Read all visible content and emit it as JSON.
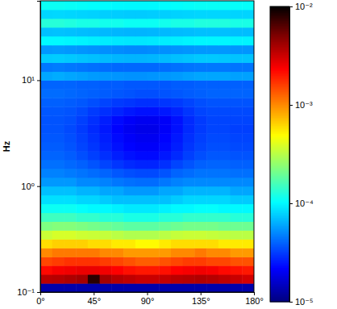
{
  "chart_data": {
    "type": "heatmap",
    "y_label": "Hz",
    "log": "y",
    "xlim": [
      0,
      180
    ],
    "ylim": [
      0.1,
      56.2
    ],
    "xticks": [
      {
        "value": 0,
        "label": "0°"
      },
      {
        "value": 45,
        "label": "45°"
      },
      {
        "value": 90,
        "label": "90°"
      },
      {
        "value": 135,
        "label": "135°"
      },
      {
        "value": 180,
        "label": "180°"
      }
    ],
    "yticks": [
      {
        "value": 0.1,
        "label": "10⁻¹"
      },
      {
        "value": 1,
        "label": "10⁰"
      },
      {
        "value": 10,
        "label": "10¹"
      }
    ],
    "colorbar_range": [
      1e-05,
      0.01
    ],
    "colorbar_ticks": [
      {
        "value": 1e-05,
        "label": "10⁻⁵"
      },
      {
        "value": 0.0001,
        "label": "10⁻⁴"
      },
      {
        "value": 0.001,
        "label": "10⁻³"
      },
      {
        "value": 0.01,
        "label": "10⁻²"
      }
    ],
    "x": [
      0,
      10,
      20,
      30,
      40,
      50,
      60,
      70,
      80,
      90,
      100,
      110,
      120,
      130,
      140,
      150,
      160,
      170,
      180
    ],
    "y": [
      0.1,
      0.121,
      0.147,
      0.178,
      0.215,
      0.261,
      0.316,
      0.383,
      0.464,
      0.562,
      0.681,
      0.825,
      1,
      1.21,
      1.47,
      1.78,
      2.15,
      2.61,
      3.16,
      3.83,
      4.64,
      5.62,
      6.81,
      8.25,
      10,
      12.1,
      14.7,
      17.8,
      21.5,
      26.1,
      31.6,
      38.3,
      46.4,
      56.2
    ],
    "z": [
      [
        1.3e-05,
        1.3e-05,
        1.3e-05,
        1.3e-05,
        1.3e-05,
        1.3e-05,
        1.3e-05,
        1.3e-05,
        1.3e-05,
        1.3e-05,
        1.3e-05,
        1.3e-05,
        1.3e-05,
        1.3e-05,
        1.3e-05,
        1.3e-05,
        1.3e-05,
        1.3e-05
      ],
      [
        0.0035,
        0.0036,
        0.0038,
        0.004,
        0.008,
        0.004,
        0.0036,
        0.0034,
        0.0032,
        0.0032,
        0.0033,
        0.0035,
        0.0036,
        0.0037,
        0.0036,
        0.0034,
        0.0032,
        0.003
      ],
      [
        0.0022,
        0.0024,
        0.0025,
        0.0026,
        0.0026,
        0.0025,
        0.0023,
        0.0021,
        0.002,
        0.002,
        0.0021,
        0.0023,
        0.0024,
        0.0025,
        0.0024,
        0.0022,
        0.0021,
        0.002
      ],
      [
        0.0015,
        0.0016,
        0.0017,
        0.0017,
        0.0017,
        0.0016,
        0.0015,
        0.0014,
        0.0013,
        0.0013,
        0.0014,
        0.0015,
        0.0016,
        0.0016,
        0.0015,
        0.0015,
        0.0014,
        0.0014
      ],
      [
        0.001,
        0.0011,
        0.0011,
        0.0011,
        0.0011,
        0.001,
        0.001,
        0.0009,
        0.0009,
        0.0009,
        0.0009,
        0.001,
        0.001,
        0.0011,
        0.001,
        0.001,
        0.0009,
        0.0009
      ],
      [
        0.0006,
        0.00065,
        0.00065,
        0.00065,
        0.0006,
        0.0006,
        0.00055,
        0.00055,
        0.0005,
        0.0005,
        0.00055,
        0.0006,
        0.0006,
        0.0006,
        0.0006,
        0.00055,
        0.00055,
        0.00055
      ],
      [
        0.00035,
        0.00038,
        0.00038,
        0.00036,
        0.00035,
        0.00034,
        0.00032,
        0.0003,
        0.0003,
        0.0003,
        0.00032,
        0.00034,
        0.00035,
        0.00035,
        0.00034,
        0.00033,
        0.00032,
        0.00032
      ],
      [
        0.00022,
        0.00023,
        0.00023,
        0.00022,
        0.00021,
        0.0002,
        0.00019,
        0.00018,
        0.00018,
        0.00018,
        0.00019,
        0.0002,
        0.00021,
        0.00021,
        0.00021,
        0.0002,
        0.0002,
        0.0002
      ],
      [
        0.00015,
        0.00015,
        0.00015,
        0.00014,
        0.00014,
        0.00013,
        0.00013,
        0.00012,
        0.00012,
        0.00012,
        0.00013,
        0.00013,
        0.00014,
        0.00014,
        0.00014,
        0.00014,
        0.00013,
        0.00013
      ],
      [
        0.00011,
        0.00011,
        0.00011,
        0.000105,
        0.0001,
        0.0001,
        9.5e-05,
        9e-05,
        9e-05,
        9e-05,
        9.5e-05,
        0.0001,
        0.0001,
        0.000105,
        0.000105,
        0.0001,
        0.0001,
        0.0001
      ],
      [
        8.5e-05,
        8.5e-05,
        8.5e-05,
        8e-05,
        8e-05,
        7.5e-05,
        7e-05,
        7e-05,
        7e-05,
        7e-05,
        7e-05,
        7.5e-05,
        8e-05,
        8e-05,
        8e-05,
        8e-05,
        7.5e-05,
        7.5e-05
      ],
      [
        7e-05,
        7e-05,
        7e-05,
        6.5e-05,
        6.5e-05,
        6e-05,
        6e-05,
        5.5e-05,
        5.5e-05,
        5.5e-05,
        6e-05,
        6e-05,
        6.5e-05,
        6.5e-05,
        6.5e-05,
        6.5e-05,
        6e-05,
        6e-05
      ],
      [
        5.5e-05,
        5.5e-05,
        5.5e-05,
        5e-05,
        5e-05,
        4.8e-05,
        4.5e-05,
        4.3e-05,
        4.2e-05,
        4.2e-05,
        4.5e-05,
        4.8e-05,
        5e-05,
        5e-05,
        5e-05,
        5e-05,
        5e-05,
        5e-05
      ],
      [
        4.8e-05,
        4.8e-05,
        4.6e-05,
        4.4e-05,
        4.2e-05,
        4e-05,
        3.7e-05,
        3.5e-05,
        3.4e-05,
        3.4e-05,
        3.6e-05,
        4e-05,
        4.2e-05,
        4.4e-05,
        4.4e-05,
        4.4e-05,
        4.3e-05,
        4.3e-05
      ],
      [
        4.3e-05,
        4.3e-05,
        4.1e-05,
        3.9e-05,
        3.6e-05,
        3.3e-05,
        3e-05,
        2.8e-05,
        2.7e-05,
        2.7e-05,
        2.9e-05,
        3.3e-05,
        3.6e-05,
        3.9e-05,
        4e-05,
        4e-05,
        3.9e-05,
        3.9e-05
      ],
      [
        4e-05,
        4e-05,
        3.8e-05,
        3.5e-05,
        3.2e-05,
        2.9e-05,
        2.6e-05,
        2.4e-05,
        2.3e-05,
        2.3e-05,
        2.5e-05,
        2.8e-05,
        3.2e-05,
        3.5e-05,
        3.7e-05,
        3.7e-05,
        3.6e-05,
        3.6e-05
      ],
      [
        3.8e-05,
        3.8e-05,
        3.6e-05,
        3.3e-05,
        3e-05,
        2.7e-05,
        2.4e-05,
        2.2e-05,
        2.1e-05,
        2.1e-05,
        2.3e-05,
        2.6e-05,
        3e-05,
        3.3e-05,
        3.5e-05,
        3.5e-05,
        3.4e-05,
        3.4e-05
      ],
      [
        3.7e-05,
        3.7e-05,
        3.5e-05,
        3.2e-05,
        2.9e-05,
        2.6e-05,
        2.3e-05,
        2.1e-05,
        2e-05,
        2e-05,
        2.2e-05,
        2.5e-05,
        2.9e-05,
        3.2e-05,
        3.4e-05,
        3.4e-05,
        3.3e-05,
        3.3e-05
      ],
      [
        3.6e-05,
        3.6e-05,
        3.4e-05,
        3.1e-05,
        2.8e-05,
        2.5e-05,
        2.2e-05,
        2e-05,
        1.9e-05,
        1.9e-05,
        2.1e-05,
        2.4e-05,
        2.8e-05,
        3.1e-05,
        3.3e-05,
        3.3e-05,
        3.2e-05,
        3.2e-05
      ],
      [
        3.6e-05,
        3.6e-05,
        3.5e-05,
        3.2e-05,
        2.9e-05,
        2.6e-05,
        2.3e-05,
        2.1e-05,
        2e-05,
        2e-05,
        2.1e-05,
        2.4e-05,
        2.8e-05,
        3.1e-05,
        3.3e-05,
        3.3e-05,
        3.3e-05,
        3.3e-05
      ],
      [
        3.7e-05,
        3.7e-05,
        3.6e-05,
        3.4e-05,
        3.1e-05,
        2.9e-05,
        2.7e-05,
        2.5e-05,
        2.4e-05,
        2.4e-05,
        2.5e-05,
        2.7e-05,
        3e-05,
        3.3e-05,
        3.4e-05,
        3.4e-05,
        3.4e-05,
        3.4e-05
      ],
      [
        3.9e-05,
        3.9e-05,
        3.8e-05,
        3.7e-05,
        3.5e-05,
        3.3e-05,
        3.1e-05,
        3e-05,
        2.9e-05,
        2.9e-05,
        3e-05,
        3.1e-05,
        3.3e-05,
        3.5e-05,
        3.6e-05,
        3.6e-05,
        3.6e-05,
        3.6e-05
      ],
      [
        4.2e-05,
        4.2e-05,
        4.1e-05,
        4e-05,
        3.9e-05,
        3.8e-05,
        3.7e-05,
        3.6e-05,
        3.5e-05,
        3.5e-05,
        3.6e-05,
        3.7e-05,
        3.8e-05,
        3.9e-05,
        4e-05,
        4e-05,
        4e-05,
        4e-05
      ],
      [
        4e-05,
        4e-05,
        4e-05,
        3.9e-05,
        3.9e-05,
        3.8e-05,
        3.8e-05,
        3.7e-05,
        3.7e-05,
        3.7e-05,
        3.7e-05,
        3.8e-05,
        3.8e-05,
        3.9e-05,
        3.9e-05,
        3.9e-05,
        3.9e-05,
        3.9e-05
      ],
      [
        6e-05,
        6.2e-05,
        6e-05,
        5.8e-05,
        5.6e-05,
        5.5e-05,
        5.4e-05,
        5.3e-05,
        5.3e-05,
        5.4e-05,
        5.5e-05,
        5.6e-05,
        5.8e-05,
        6e-05,
        6e-05,
        6e-05,
        5.8e-05,
        5.8e-05
      ],
      [
        4.5e-05,
        4.6e-05,
        4.5e-05,
        4.4e-05,
        4.3e-05,
        4.2e-05,
        4.1e-05,
        4.1e-05,
        4.1e-05,
        4.1e-05,
        4.2e-05,
        4.3e-05,
        4.4e-05,
        4.5e-05,
        4.5e-05,
        4.5e-05,
        4.4e-05,
        4.4e-05
      ],
      [
        7.5e-05,
        7.6e-05,
        7.4e-05,
        7.2e-05,
        7e-05,
        6.8e-05,
        6.6e-05,
        6.5e-05,
        6.5e-05,
        6.6e-05,
        6.8e-05,
        7e-05,
        7.2e-05,
        7.4e-05,
        7.4e-05,
        7.3e-05,
        7.2e-05,
        7.2e-05
      ],
      [
        5.5e-05,
        5.6e-05,
        5.5e-05,
        5.4e-05,
        5.3e-05,
        5.2e-05,
        5.1e-05,
        5e-05,
        5e-05,
        5.1e-05,
        5.2e-05,
        5.3e-05,
        5.4e-05,
        5.5e-05,
        5.5e-05,
        5.5e-05,
        5.4e-05,
        5.4e-05
      ],
      [
        0.0001,
        0.0001,
        9.8e-05,
        9.6e-05,
        9.4e-05,
        9.2e-05,
        9e-05,
        8.9e-05,
        8.9e-05,
        9e-05,
        9.2e-05,
        9.4e-05,
        9.6e-05,
        9.8e-05,
        9.8e-05,
        9.8e-05,
        9.6e-05,
        9.6e-05
      ],
      [
        7e-05,
        7.1e-05,
        7e-05,
        6.9e-05,
        6.8e-05,
        6.7e-05,
        6.6e-05,
        6.5e-05,
        6.5e-05,
        6.6e-05,
        6.7e-05,
        6.8e-05,
        6.9e-05,
        7e-05,
        7e-05,
        7e-05,
        6.9e-05,
        6.9e-05
      ],
      [
        0.00013,
        0.00013,
        0.000125,
        0.00012,
        0.00012,
        0.000115,
        0.000115,
        0.00011,
        0.00011,
        0.00011,
        0.000115,
        0.00012,
        0.00012,
        0.000125,
        0.000125,
        0.000125,
        0.00012,
        0.00012
      ],
      [
        8e-05,
        8.1e-05,
        8e-05,
        7.9e-05,
        7.8e-05,
        7.7e-05,
        7.6e-05,
        7.5e-05,
        7.5e-05,
        7.6e-05,
        7.7e-05,
        7.8e-05,
        7.9e-05,
        8e-05,
        8e-05,
        8e-05,
        7.9e-05,
        7.9e-05
      ],
      [
        0.00011,
        0.00011,
        0.000108,
        0.000106,
        0.000104,
        0.000102,
        0.0001,
        9.9e-05,
        9.9e-05,
        0.0001,
        0.000102,
        0.000104,
        0.000106,
        0.000108,
        0.000108,
        0.000108,
        0.000106,
        0.000106
      ]
    ]
  }
}
